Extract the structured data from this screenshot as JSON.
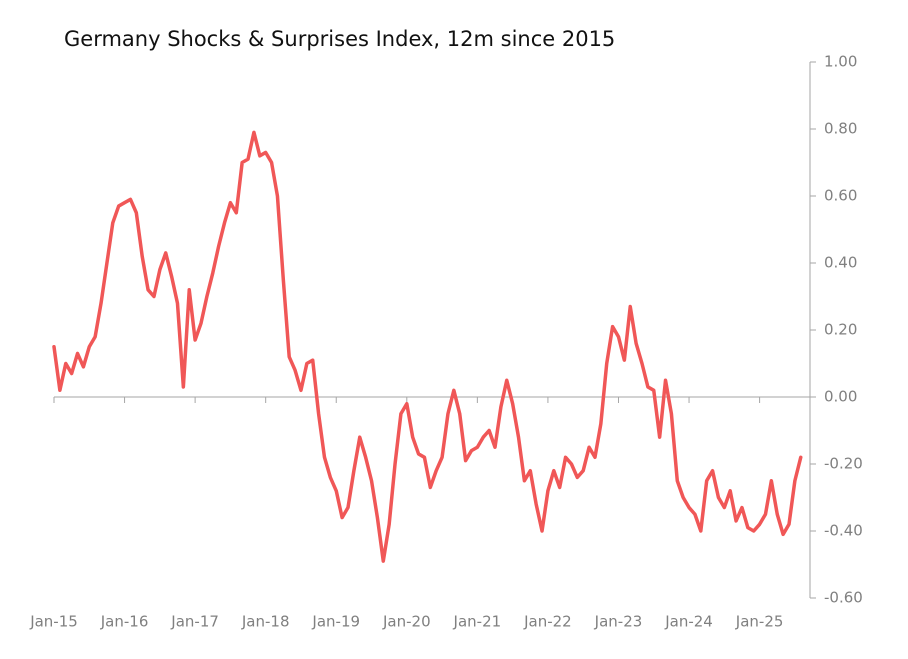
{
  "chart_data": {
    "type": "line",
    "title": "Germany Shocks  & Surprises Index, 12m since 2015",
    "categories": [
      "Jan-15",
      null,
      null,
      null,
      null,
      null,
      null,
      null,
      null,
      null,
      null,
      null,
      "Jan-16",
      null,
      null,
      null,
      null,
      null,
      null,
      null,
      null,
      null,
      null,
      null,
      "Jan-17",
      null,
      null,
      null,
      null,
      null,
      null,
      null,
      null,
      null,
      null,
      null,
      "Jan-18",
      null,
      null,
      null,
      null,
      null,
      null,
      null,
      null,
      null,
      null,
      null,
      "Jan-19",
      null,
      null,
      null,
      null,
      null,
      null,
      null,
      null,
      null,
      null,
      null,
      "Jan-20",
      null,
      null,
      null,
      null,
      null,
      null,
      null,
      null,
      null,
      null,
      null,
      "Jan-21",
      null,
      null,
      null,
      null,
      null,
      null,
      null,
      null,
      null,
      null,
      null,
      "Jan-22",
      null,
      null,
      null,
      null,
      null,
      null,
      null,
      null,
      null,
      null,
      null,
      "Jan-23",
      null,
      null,
      null,
      null,
      null,
      null,
      null,
      null,
      null,
      null,
      null,
      "Jan-24",
      null,
      null,
      null,
      null,
      null,
      null,
      null,
      null,
      null,
      null,
      null,
      "Jan-25",
      null,
      null,
      null,
      null,
      null,
      null,
      null
    ],
    "series": [
      {
        "name": "Germany Shocks & Surprises Index",
        "color": "#f05757",
        "values": [
          0.15,
          0.02,
          0.1,
          0.07,
          0.13,
          0.09,
          0.15,
          0.18,
          0.28,
          0.4,
          0.52,
          0.57,
          0.58,
          0.59,
          0.55,
          0.42,
          0.32,
          0.3,
          0.38,
          0.43,
          0.36,
          0.28,
          0.03,
          0.32,
          0.17,
          0.22,
          0.3,
          0.37,
          0.45,
          0.52,
          0.58,
          0.55,
          0.7,
          0.71,
          0.79,
          0.72,
          0.73,
          0.7,
          0.6,
          0.35,
          0.12,
          0.08,
          0.02,
          0.1,
          0.11,
          -0.05,
          -0.18,
          -0.24,
          -0.28,
          -0.36,
          -0.33,
          -0.22,
          -0.12,
          -0.18,
          -0.25,
          -0.36,
          -0.49,
          -0.38,
          -0.2,
          -0.05,
          -0.02,
          -0.12,
          -0.17,
          -0.18,
          -0.27,
          -0.22,
          -0.18,
          -0.05,
          0.02,
          -0.05,
          -0.19,
          -0.16,
          -0.15,
          -0.12,
          -0.1,
          -0.15,
          -0.03,
          0.05,
          -0.02,
          -0.12,
          -0.25,
          -0.22,
          -0.32,
          -0.4,
          -0.28,
          -0.22,
          -0.27,
          -0.18,
          -0.2,
          -0.24,
          -0.22,
          -0.15,
          -0.18,
          -0.08,
          0.1,
          0.21,
          0.18,
          0.11,
          0.27,
          0.16,
          0.1,
          0.03,
          0.02,
          -0.12,
          0.05,
          -0.05,
          -0.25,
          -0.3,
          -0.33,
          -0.35,
          -0.4,
          -0.25,
          -0.22,
          -0.3,
          -0.33,
          -0.28,
          -0.37,
          -0.33,
          -0.39,
          -0.4,
          -0.38,
          -0.35,
          -0.25,
          -0.35,
          -0.41,
          -0.38,
          -0.25,
          -0.18
        ]
      }
    ],
    "ylim": [
      -0.6,
      1.0
    ],
    "yticks": [
      {
        "value": 1.0,
        "label": "1.00"
      },
      {
        "value": 0.8,
        "label": "0.80"
      },
      {
        "value": 0.6,
        "label": "0.60"
      },
      {
        "value": 0.4,
        "label": "0.40"
      },
      {
        "value": 0.2,
        "label": "0.20"
      },
      {
        "value": 0,
        "label": "0.00"
      },
      {
        "value": -0.2,
        "label": "-0.20"
      },
      {
        "value": -0.4,
        "label": "-0.40"
      },
      {
        "value": -0.6,
        "label": "-0.60"
      }
    ],
    "yaxis_side": "right",
    "grid": false
  }
}
